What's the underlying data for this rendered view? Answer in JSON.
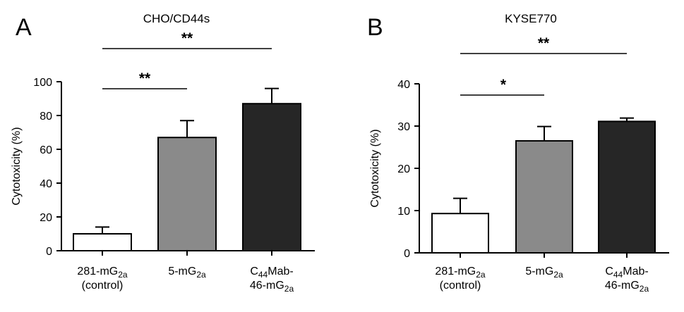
{
  "figure": {
    "panels": [
      "A",
      "B"
    ]
  },
  "chart_data": [
    {
      "type": "bar",
      "panel": "A",
      "title": "CHO/CD44s",
      "ylabel": "Cytotoxicity (%)",
      "ylim": [
        0,
        100
      ],
      "yticks": [
        0,
        20,
        40,
        60,
        80,
        100
      ],
      "categories": [
        {
          "lines": [
            [
              {
                "t": "281-mG"
              },
              {
                "t": "2a",
                "sub": true
              }
            ],
            [
              {
                "t": "(control)"
              }
            ]
          ]
        },
        {
          "lines": [
            [
              {
                "t": "5-mG"
              },
              {
                "t": "2a",
                "sub": true
              }
            ]
          ]
        },
        {
          "lines": [
            [
              {
                "t": "C"
              },
              {
                "t": "44",
                "sub": true
              },
              {
                "t": "Mab-"
              }
            ],
            [
              {
                "t": "46-mG"
              },
              {
                "t": "2a",
                "sub": true
              }
            ]
          ]
        }
      ],
      "values": [
        10,
        67,
        87
      ],
      "errors": [
        4,
        10,
        9
      ],
      "bar_colors": [
        "#ffffff",
        "#8a8a8a",
        "#262626"
      ],
      "significance": [
        {
          "from": 0,
          "to": 1,
          "label": "**"
        },
        {
          "from": 0,
          "to": 2,
          "label": "**"
        }
      ]
    },
    {
      "type": "bar",
      "panel": "B",
      "title": "KYSE770",
      "ylabel": "Cytotoxicity (%)",
      "ylim": [
        0,
        40
      ],
      "yticks": [
        0,
        10,
        20,
        30,
        40
      ],
      "categories": [
        {
          "lines": [
            [
              {
                "t": "281-mG"
              },
              {
                "t": "2a",
                "sub": true
              }
            ],
            [
              {
                "t": "(control)"
              }
            ]
          ]
        },
        {
          "lines": [
            [
              {
                "t": "5-mG"
              },
              {
                "t": "2a",
                "sub": true
              }
            ]
          ]
        },
        {
          "lines": [
            [
              {
                "t": "C"
              },
              {
                "t": "44",
                "sub": true
              },
              {
                "t": "Mab-"
              }
            ],
            [
              {
                "t": "46-mG"
              },
              {
                "t": "2a",
                "sub": true
              }
            ]
          ]
        }
      ],
      "values": [
        9.3,
        26.5,
        31.1
      ],
      "errors": [
        3.6,
        3.4,
        0.8
      ],
      "bar_colors": [
        "#ffffff",
        "#8a8a8a",
        "#262626"
      ],
      "significance": [
        {
          "from": 0,
          "to": 1,
          "label": "*"
        },
        {
          "from": 0,
          "to": 2,
          "label": "**"
        }
      ]
    }
  ]
}
